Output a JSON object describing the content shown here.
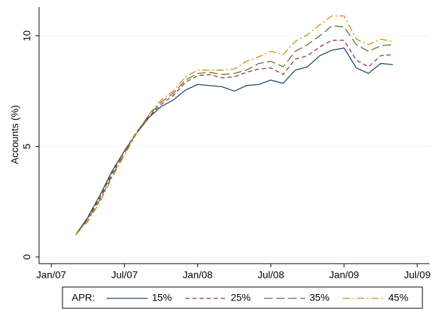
{
  "chart_data": {
    "type": "line",
    "y_label": "Accounts (%)",
    "x": [
      "2007-03",
      "2007-04",
      "2007-05",
      "2007-06",
      "2007-07",
      "2007-08",
      "2007-09",
      "2007-10",
      "2007-11",
      "2007-12",
      "2008-01",
      "2008-02",
      "2008-03",
      "2008-04",
      "2008-05",
      "2008-06",
      "2008-07",
      "2008-08",
      "2008-09",
      "2008-10",
      "2008-11",
      "2008-12",
      "2009-01",
      "2009-02",
      "2009-03",
      "2009-04",
      "2009-05"
    ],
    "series": [
      {
        "name": "15%",
        "color": "#1a476f",
        "dash": "none",
        "values": [
          1.0,
          1.8,
          2.8,
          3.9,
          4.8,
          5.6,
          6.3,
          6.8,
          7.1,
          7.55,
          7.8,
          7.75,
          7.7,
          7.5,
          7.75,
          7.8,
          8.0,
          7.85,
          8.45,
          8.6,
          9.1,
          9.35,
          9.45,
          8.55,
          8.3,
          8.75,
          8.7
        ]
      },
      {
        "name": "25%",
        "color": "#90353b",
        "dash": "6 4",
        "values": [
          1.0,
          1.75,
          2.7,
          3.8,
          4.8,
          5.65,
          6.35,
          6.9,
          7.3,
          7.9,
          8.2,
          8.25,
          8.1,
          8.15,
          8.35,
          8.5,
          8.55,
          8.25,
          8.95,
          9.1,
          9.5,
          9.8,
          9.8,
          8.9,
          8.6,
          9.1,
          9.15
        ]
      },
      {
        "name": "35%",
        "color": "#55752f",
        "dash": "12 5",
        "values": [
          1.0,
          1.7,
          2.6,
          3.7,
          4.7,
          5.65,
          6.4,
          7.0,
          7.4,
          8.0,
          8.3,
          8.35,
          8.25,
          8.3,
          8.45,
          8.75,
          8.85,
          8.6,
          9.3,
          9.6,
          10.0,
          10.45,
          10.4,
          9.6,
          9.3,
          9.55,
          9.6
        ]
      },
      {
        "name": "45%",
        "color": "#e37e00",
        "dash": "10 4 2 4",
        "values": [
          1.0,
          1.6,
          2.5,
          3.6,
          4.6,
          5.6,
          6.45,
          7.1,
          7.5,
          8.15,
          8.45,
          8.45,
          8.45,
          8.5,
          8.85,
          9.05,
          9.3,
          9.15,
          9.75,
          10.05,
          10.5,
          10.9,
          10.9,
          9.85,
          9.6,
          9.85,
          9.75
        ]
      }
    ],
    "xlim": [
      "2006-12",
      "2009-08"
    ],
    "xticks": [
      {
        "value": "2007-01",
        "label": "Jan/07"
      },
      {
        "value": "2007-07",
        "label": "Jul/07"
      },
      {
        "value": "2008-01",
        "label": "Jan/08"
      },
      {
        "value": "2008-07",
        "label": "Jul/08"
      },
      {
        "value": "2009-01",
        "label": "Jan/09"
      },
      {
        "value": "2009-07",
        "label": "Jul/09"
      }
    ],
    "ylim": [
      -0.3,
      11.3
    ],
    "yticks": [
      0,
      5,
      10
    ],
    "grid": true,
    "legend_title": "APR:",
    "legend_position": "bottom"
  }
}
